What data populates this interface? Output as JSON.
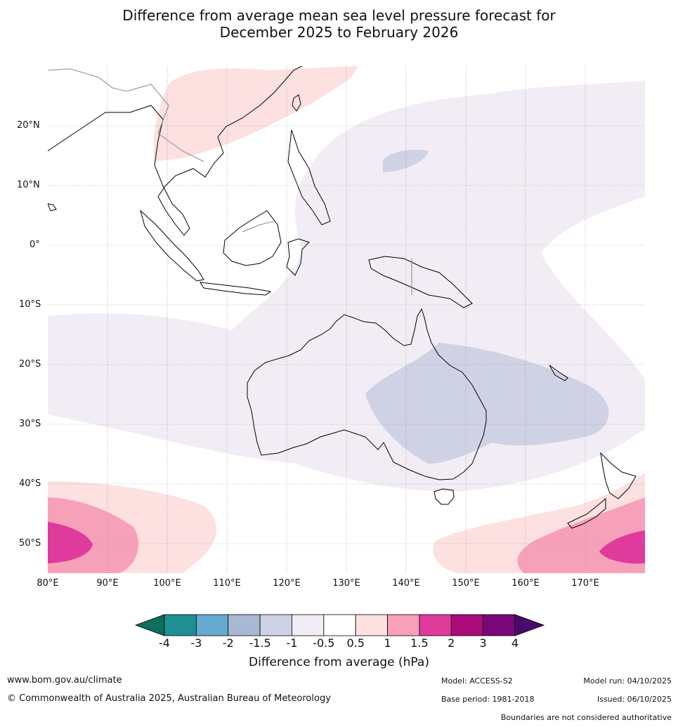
{
  "title_line1": "Difference from average mean sea level pressure forecast for",
  "title_line2": "December 2025 to February 2026",
  "lat_labels": [
    "20°N",
    "10°N",
    "0°",
    "10°S",
    "20°S",
    "30°S",
    "40°S",
    "50°S"
  ],
  "lon_labels": [
    "80°E",
    "90°E",
    "100°E",
    "110°E",
    "120°E",
    "130°E",
    "140°E",
    "150°E",
    "160°E",
    "170°E"
  ],
  "colorbar": {
    "tick_labels": [
      "-4",
      "-3",
      "-2",
      "-1.5",
      "-1",
      "-0.5",
      "0.5",
      "1",
      "1.5",
      "2",
      "3",
      "4"
    ],
    "colors": [
      "#0e6e5e",
      "#1f9094",
      "#67aacf",
      "#a9b8d3",
      "#cfd1e5",
      "#f2ecf5",
      "#ffffff",
      "#fde0e0",
      "#f7a0ba",
      "#df3a9c",
      "#ac0b7c",
      "#7a067a",
      "#4a0a6a"
    ],
    "title": "Difference from average (hPa)"
  },
  "footer": {
    "website": "www.bom.gov.au/climate",
    "copyright": "© Commonwealth of Australia 2025, Australian Bureau of Meteorology",
    "model": "Model: ACCESS-S2",
    "base_period": "Base period: 1981-2018",
    "model_run": "Model run: 04/10/2025",
    "issued": "Issued: 06/10/2025",
    "disclaimer": "Boundaries are not considered authoritative"
  }
}
